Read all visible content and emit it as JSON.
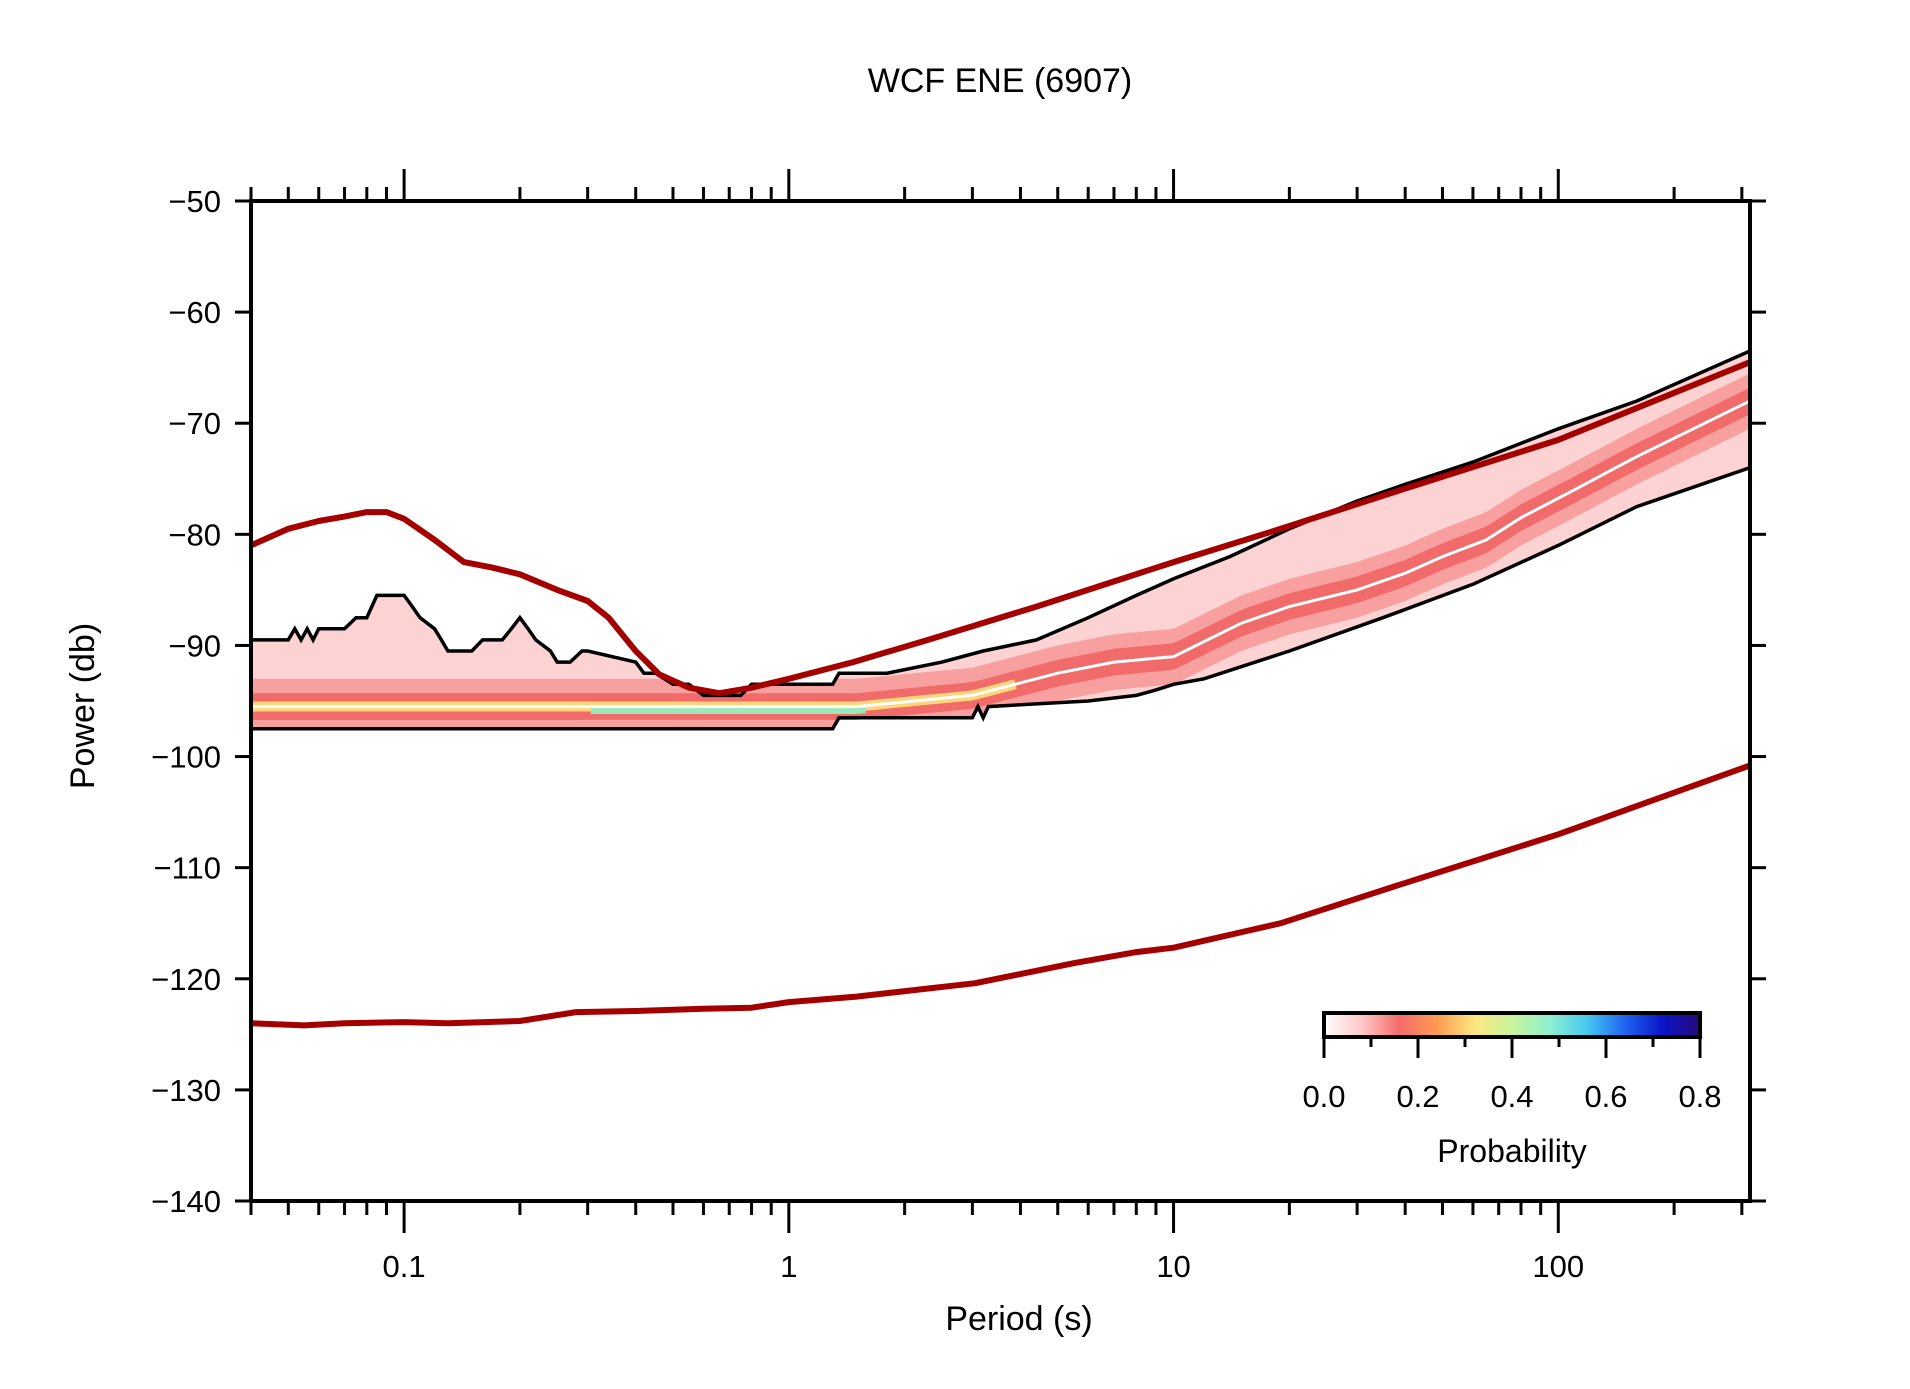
{
  "chart_data": {
    "type": "heatmap",
    "title": "WCF ENE (6907)",
    "xlabel": "Period (s)",
    "ylabel": "Power (db)",
    "xscale": "log",
    "xlim": [
      0.04,
      315
    ],
    "ylim": [
      -140,
      -50
    ],
    "x_ticks": [
      0.1,
      1,
      10,
      100
    ],
    "x_tick_labels": [
      "0.1",
      "1",
      "10",
      "100"
    ],
    "y_ticks": [
      -50,
      -60,
      -70,
      -80,
      -90,
      -100,
      -110,
      -120,
      -130,
      -140
    ],
    "y_tick_labels": [
      "−50",
      "−60",
      "−70",
      "−80",
      "−90",
      "−100",
      "−110",
      "−120",
      "−130",
      "−140"
    ],
    "colorbar": {
      "label": "Probability",
      "range": [
        0,
        0.8
      ],
      "ticks": [
        "0.0",
        "0.2",
        "0.4",
        "0.6",
        "0.8"
      ],
      "placement": "bottom-right",
      "colors": [
        "#ffffff",
        "#ffc8c8",
        "#f56b6b",
        "#ff9a50",
        "#ffe680",
        "#c8f59a",
        "#8ef0d0",
        "#46c8f0",
        "#1e64f0",
        "#0a14c8",
        "#280a78"
      ]
    },
    "series": [
      {
        "name": "NHNM",
        "color": "#a50000",
        "x": [
          0.04,
          0.05,
          0.06,
          0.07,
          0.08,
          0.09,
          0.1,
          0.12,
          0.143,
          0.17,
          0.2,
          0.25,
          0.3,
          0.34,
          0.4,
          0.46,
          0.55,
          0.66,
          0.8,
          1,
          1.47,
          2.3,
          4.4,
          10,
          19,
          39,
          100,
          315
        ],
        "y": [
          -81,
          -79.5,
          -78.8,
          -78.4,
          -78,
          -78,
          -78.6,
          -80.5,
          -82.5,
          -83,
          -83.6,
          -85,
          -86,
          -87.5,
          -90.5,
          -92.6,
          -93.8,
          -94.3,
          -93.8,
          -93,
          -91.5,
          -89.5,
          -86.5,
          -82.5,
          -79.5,
          -76,
          -71.5,
          -64.5
        ]
      },
      {
        "name": "NLNM",
        "color": "#a50000",
        "x": [
          0.04,
          0.055,
          0.07,
          0.1,
          0.13,
          0.2,
          0.28,
          0.4,
          0.6,
          0.8,
          1,
          1.5,
          3.05,
          5.5,
          8,
          10,
          19,
          39,
          100,
          315
        ],
        "y": [
          -124,
          -124.2,
          -124,
          -123.9,
          -124,
          -123.8,
          -123,
          -122.9,
          -122.7,
          -122.6,
          -122.1,
          -121.6,
          -120.4,
          -118.6,
          -117.6,
          -117.2,
          -115,
          -111.5,
          -107,
          -100.8
        ]
      },
      {
        "name": "max",
        "color": "#000000",
        "x": [
          0.04,
          0.05,
          0.052,
          0.054,
          0.056,
          0.058,
          0.06,
          0.07,
          0.075,
          0.08,
          0.085,
          0.1,
          0.105,
          0.11,
          0.12,
          0.125,
          0.13,
          0.15,
          0.16,
          0.18,
          0.19,
          0.2,
          0.21,
          0.22,
          0.24,
          0.25,
          0.27,
          0.29,
          0.3,
          0.4,
          0.42,
          0.45,
          0.5,
          0.55,
          0.6,
          0.75,
          0.8,
          1.3,
          1.35,
          1.8,
          2.5,
          3.2,
          4.4,
          6,
          8,
          10,
          14,
          20,
          30,
          40,
          60,
          100,
          160,
          315
        ],
        "y": [
          -89.5,
          -89.5,
          -88.5,
          -89.5,
          -88.5,
          -89.5,
          -88.5,
          -88.5,
          -87.5,
          -87.5,
          -85.5,
          -85.5,
          -86.5,
          -87.5,
          -88.5,
          -89.5,
          -90.5,
          -90.5,
          -89.5,
          -89.5,
          -88.5,
          -87.5,
          -88.5,
          -89.5,
          -90.5,
          -91.5,
          -91.5,
          -90.5,
          -90.5,
          -91.5,
          -92.5,
          -92.5,
          -93.5,
          -93.5,
          -94.5,
          -94.5,
          -93.5,
          -93.5,
          -92.5,
          -92.5,
          -91.5,
          -90.5,
          -89.5,
          -87.5,
          -85.5,
          -84,
          -82,
          -79.5,
          -77,
          -75.5,
          -73.5,
          -70.5,
          -68,
          -63.5
        ]
      },
      {
        "name": "min",
        "color": "#000000",
        "x": [
          0.04,
          1.3,
          1.35,
          3,
          3.1,
          3.2,
          3.3,
          6,
          8,
          9,
          10,
          12,
          20,
          35,
          60,
          100,
          160,
          315
        ],
        "y": [
          -97.5,
          -97.5,
          -96.5,
          -96.5,
          -95.5,
          -96.5,
          -95.5,
          -95,
          -94.5,
          -94,
          -93.5,
          -93,
          -90.5,
          -87.5,
          -84.5,
          -81,
          -77.5,
          -74
        ]
      },
      {
        "name": "mode",
        "color": "#ffffff",
        "x": [
          0.04,
          1.5,
          3,
          5,
          7,
          10,
          15,
          20,
          30,
          40,
          50,
          65,
          80,
          110,
          160,
          315
        ],
        "y": [
          -95.5,
          -95.5,
          -94.5,
          -92.5,
          -91.5,
          -91,
          -88,
          -86.5,
          -85,
          -83.5,
          -82,
          -80.5,
          -78.5,
          -76,
          -73,
          -68
        ]
      }
    ]
  }
}
